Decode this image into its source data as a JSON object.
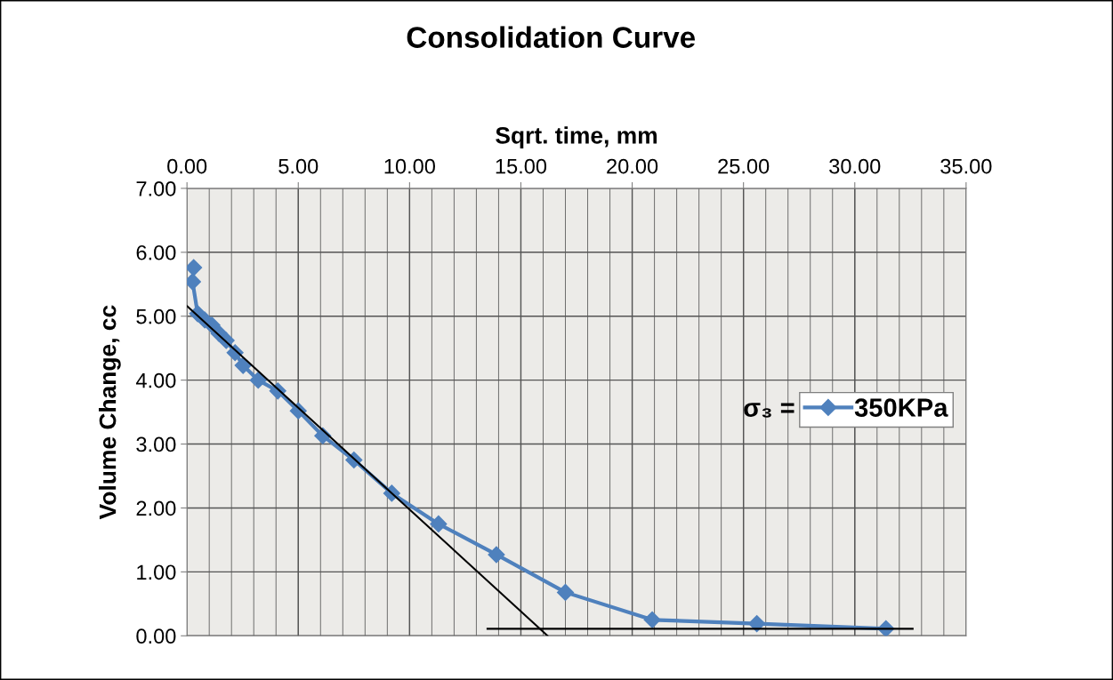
{
  "chart_data": {
    "type": "line",
    "title": "Consolidation Curve",
    "xlabel": "Sqrt. time, mm",
    "ylabel": "Volume Change, cc",
    "legend_title": "σ₃ =",
    "xlim": [
      0,
      35
    ],
    "xticks": [
      {
        "value": 0,
        "label": "0.00"
      },
      {
        "value": 5,
        "label": "5.00"
      },
      {
        "value": 10,
        "label": "10.00"
      },
      {
        "value": 15,
        "label": "15.00"
      },
      {
        "value": 20,
        "label": "20.00"
      },
      {
        "value": 25,
        "label": "25.00"
      },
      {
        "value": 30,
        "label": "30.00"
      },
      {
        "value": 35,
        "label": "35.00"
      }
    ],
    "ylim": [
      0,
      7
    ],
    "yticks": [
      {
        "value": 0,
        "label": "0.00"
      },
      {
        "value": 1,
        "label": "1.00"
      },
      {
        "value": 2,
        "label": "2.00"
      },
      {
        "value": 3,
        "label": "3.00"
      },
      {
        "value": 4,
        "label": "4.00"
      },
      {
        "value": 5,
        "label": "5.00"
      },
      {
        "value": 6,
        "label": "6.00"
      },
      {
        "value": 7,
        "label": "7.00"
      }
    ],
    "grid": true,
    "legend": "right",
    "series": [
      {
        "name": "350KPa",
        "color": "#4f81bd",
        "marker": "diamond",
        "x": [
          0.3,
          0.25,
          0.48,
          0.8,
          1.12,
          1.44,
          1.76,
          2.16,
          2.52,
          3.2,
          4.08,
          5.0,
          6.1,
          7.5,
          9.2,
          11.3,
          13.9,
          17.0,
          20.9,
          25.6,
          31.4
        ],
        "values": [
          5.76,
          5.54,
          5.04,
          4.94,
          4.86,
          4.73,
          4.62,
          4.43,
          4.23,
          4.0,
          3.83,
          3.52,
          3.13,
          2.75,
          2.23,
          1.75,
          1.27,
          0.68,
          0.25,
          0.19,
          0.11
        ]
      },
      {
        "type": "line",
        "color": "#000000",
        "marker": "none",
        "x": [
          0,
          16.2
        ],
        "values": [
          5.16,
          0
        ]
      },
      {
        "type": "line",
        "color": "#000000",
        "marker": "none",
        "x": [
          13.5,
          32.6
        ],
        "values": [
          0.11,
          0.11
        ]
      }
    ]
  }
}
